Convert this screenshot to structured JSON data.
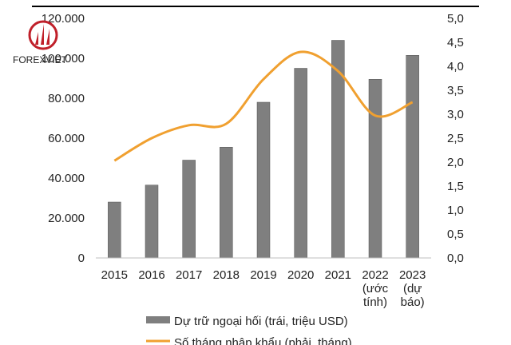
{
  "watermark": {
    "text": "FOREXVIET"
  },
  "colors": {
    "bar": "#7f7f7f",
    "bar_stroke": "#555555",
    "line": "#f0a030",
    "axis": "#000000",
    "logo": "#c0202a"
  },
  "chart_data": {
    "type": "bar",
    "categories": [
      "2015",
      "2016",
      "2017",
      "2018",
      "2019",
      "2020",
      "2021",
      "2022\n(ước\ntính)",
      "2023\n(dự\nbáo)"
    ],
    "series": [
      {
        "name": "Dự trữ ngoại hối (trái, triệu USD)",
        "type": "bar",
        "axis": "left",
        "values": [
          28000,
          36500,
          49000,
          55500,
          78000,
          95000,
          109000,
          89500,
          101500
        ]
      },
      {
        "name": "Số tháng nhập khẩu (phải, tháng)",
        "type": "line",
        "axis": "right",
        "smooth": true,
        "values": [
          2.03,
          2.5,
          2.77,
          2.8,
          3.73,
          4.3,
          3.9,
          2.97,
          3.25
        ]
      }
    ],
    "y_left": {
      "min": 0,
      "max": 120000,
      "tick_labels": [
        "0",
        "20.000",
        "40.000",
        "60.000",
        "80.000",
        "100.000",
        "120.000"
      ]
    },
    "y_right": {
      "min": 0,
      "max": 5,
      "tick_labels": [
        "0,0",
        "0,5",
        "1,0",
        "1,5",
        "2,0",
        "2,5",
        "3,0",
        "3,5",
        "4,0",
        "4,5",
        "5,0"
      ]
    },
    "grid": false,
    "legend_position": "bottom"
  }
}
